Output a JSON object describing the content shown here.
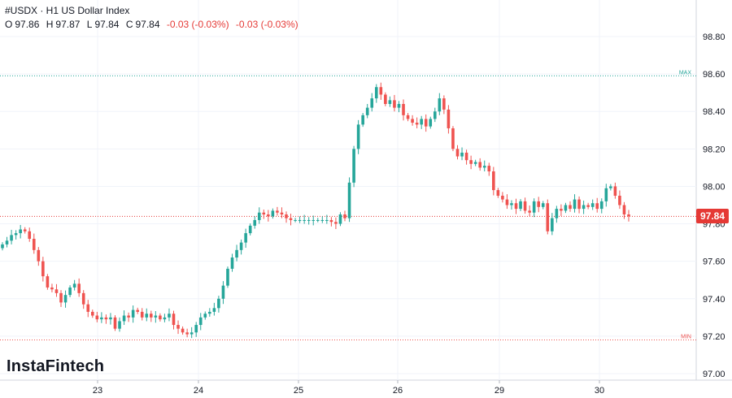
{
  "header": {
    "title": "#USDX · H1 US Dollar Index",
    "ohlc": {
      "o_label": "O",
      "o": "97.86",
      "h_label": "H",
      "h": "97.87",
      "l_label": "L",
      "l": "97.84",
      "c_label": "C",
      "c": "97.84",
      "change1": "-0.03 (-0.03%)",
      "change2": "-0.03 (-0.03%)"
    }
  },
  "brand": "InstaFintech",
  "colors": {
    "up": "#26a69a",
    "down": "#ef5350",
    "max_line": "#26a69a",
    "min_line": "#ef5350",
    "last_price": "#e53935",
    "grid": "#f0f3fa"
  },
  "chart_data": {
    "type": "candlestick",
    "y_ticks": [
      "97.00",
      "97.20",
      "97.40",
      "97.60",
      "97.80",
      "98.00",
      "98.20",
      "98.40",
      "98.60",
      "98.80"
    ],
    "x_ticks": [
      "23",
      "24",
      "25",
      "26",
      "29",
      "30"
    ],
    "ylim": [
      96.98,
      98.96
    ],
    "grid": true,
    "max": {
      "label": "MAX",
      "value": 98.59
    },
    "min": {
      "label": "MIN",
      "value": 97.18
    },
    "last_price": {
      "label": "97.84",
      "value": 97.84
    },
    "closes": [
      97.69,
      97.71,
      97.74,
      97.75,
      97.77,
      97.76,
      97.72,
      97.66,
      97.6,
      97.52,
      97.46,
      97.45,
      97.43,
      97.38,
      97.42,
      97.46,
      97.48,
      97.43,
      97.37,
      97.33,
      97.31,
      97.29,
      97.3,
      97.29,
      97.3,
      97.24,
      97.28,
      97.31,
      97.3,
      97.34,
      97.33,
      97.3,
      97.32,
      97.3,
      97.31,
      97.29,
      97.3,
      97.32,
      97.26,
      97.24,
      97.22,
      97.21,
      97.22,
      97.26,
      97.3,
      97.32,
      97.33,
      97.35,
      97.4,
      97.47,
      97.56,
      97.62,
      97.66,
      97.7,
      97.75,
      97.79,
      97.82,
      97.86,
      97.85,
      97.84,
      97.87,
      97.86,
      97.85,
      97.83,
      97.82,
      97.82,
      97.82,
      97.82,
      97.82,
      97.82,
      97.82,
      97.82,
      97.82,
      97.81,
      97.8,
      97.85,
      97.83,
      98.02,
      98.2,
      98.33,
      98.38,
      98.42,
      98.47,
      98.53,
      98.49,
      98.44,
      98.46,
      98.42,
      98.44,
      98.38,
      98.36,
      98.34,
      98.33,
      98.36,
      98.32,
      98.36,
      98.4,
      98.47,
      98.41,
      98.31,
      98.2,
      98.16,
      98.18,
      98.14,
      98.12,
      98.13,
      98.1,
      98.11,
      98.08,
      97.98,
      97.95,
      97.93,
      97.9,
      97.91,
      97.88,
      97.92,
      97.87,
      97.86,
      97.92,
      97.89,
      97.91,
      97.76,
      97.83,
      97.88,
      97.87,
      97.9,
      97.88,
      97.93,
      97.88,
      97.9,
      97.89,
      97.91,
      97.88,
      97.92,
      97.99,
      98.0,
      97.95,
      97.9,
      97.85,
      97.84
    ]
  }
}
